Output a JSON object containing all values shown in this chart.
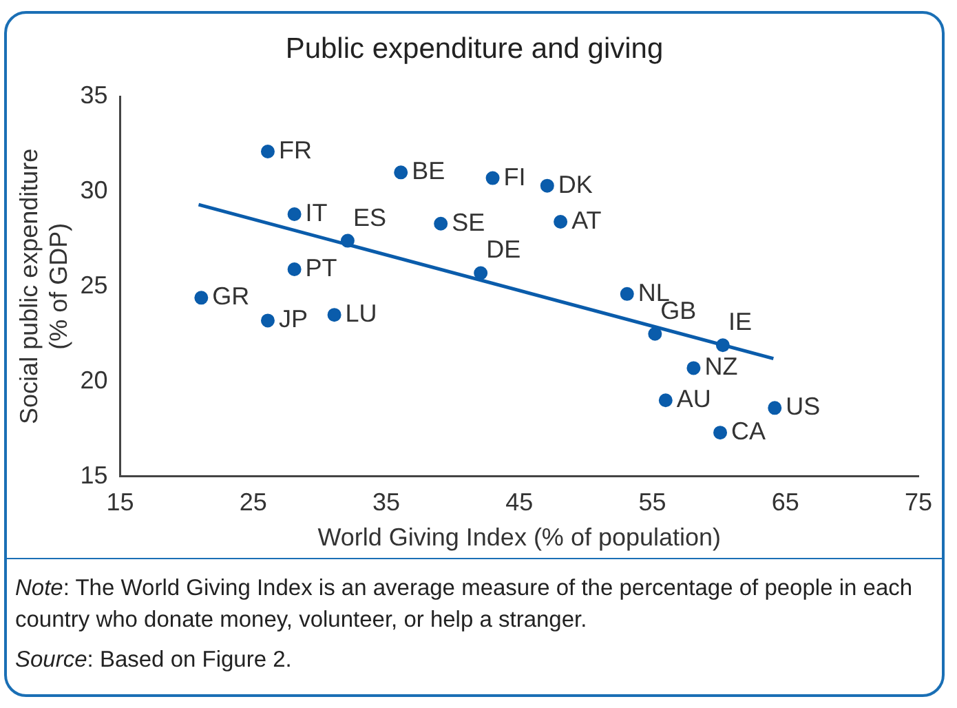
{
  "chart_data": {
    "type": "scatter",
    "title": "Public expenditure and giving",
    "xlabel": "World Giving Index (% of population)",
    "ylabel": "Social public expenditure\n(% of GDP)",
    "xlim": [
      15,
      75
    ],
    "xticks": [
      15,
      25,
      35,
      45,
      55,
      65,
      75
    ],
    "ylim": [
      15,
      35
    ],
    "yticks": [
      15,
      20,
      25,
      30,
      35
    ],
    "grid": false,
    "legend": false,
    "marker": "circle",
    "series": [
      {
        "color": "#0a5cab",
        "x": [
          26.1,
          36.1,
          43.0,
          47.1,
          48.1,
          28.1,
          32.1,
          39.1,
          28.1,
          42.1,
          21.1,
          26.1,
          31.1,
          53.1,
          55.2,
          60.3,
          58.1,
          56.0,
          64.2,
          60.1
        ],
        "values": [
          32.1,
          31.0,
          30.7,
          30.3,
          28.4,
          28.8,
          27.4,
          28.3,
          25.9,
          25.7,
          24.4,
          23.2,
          23.5,
          24.6,
          22.5,
          21.9,
          20.7,
          19.0,
          18.6,
          17.3
        ]
      },
      {
        "type": "line",
        "color": "#0a5cab",
        "x": [
          20.9,
          64.1
        ],
        "values": [
          29.3,
          21.2
        ],
        "marker": "none",
        "line_style": "solid"
      }
    ],
    "annotations": [
      {
        "text": "FR",
        "x": 26.1,
        "y": 32.1
      },
      {
        "text": "BE",
        "x": 36.1,
        "y": 31.0
      },
      {
        "text": "FI",
        "x": 43.0,
        "y": 30.7
      },
      {
        "text": "DK",
        "x": 47.1,
        "y": 30.3
      },
      {
        "text": "AT",
        "x": 48.1,
        "y": 28.4
      },
      {
        "text": "IT",
        "x": 28.1,
        "y": 28.8
      },
      {
        "text": "ES",
        "x": 32.1,
        "y": 27.4
      },
      {
        "text": "SE",
        "x": 39.1,
        "y": 28.3
      },
      {
        "text": "PT",
        "x": 28.1,
        "y": 25.9
      },
      {
        "text": "DE",
        "x": 42.1,
        "y": 25.7
      },
      {
        "text": "GR",
        "x": 21.1,
        "y": 24.4
      },
      {
        "text": "JP",
        "x": 26.1,
        "y": 23.2
      },
      {
        "text": "LU",
        "x": 31.1,
        "y": 23.5
      },
      {
        "text": "NL",
        "x": 53.1,
        "y": 24.6
      },
      {
        "text": "GB",
        "x": 55.2,
        "y": 22.5
      },
      {
        "text": "IE",
        "x": 60.3,
        "y": 21.9
      },
      {
        "text": "NZ",
        "x": 58.1,
        "y": 20.7
      },
      {
        "text": "AU",
        "x": 56.0,
        "y": 19.0
      },
      {
        "text": "US",
        "x": 64.2,
        "y": 18.6
      },
      {
        "text": "CA",
        "x": 60.1,
        "y": 17.3
      },
      "Note: The World Giving Index is an average measure of the percentage of people in each country who donate money, volunteer, or help a stranger.",
      "Source: Based on Figure 2."
    ]
  }
}
